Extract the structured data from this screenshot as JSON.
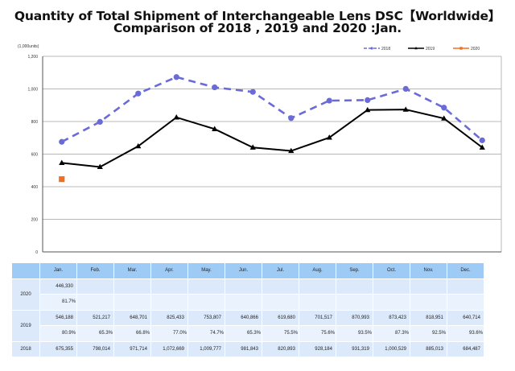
{
  "chart_data": {
    "type": "line",
    "title": "Quantity of Total Shipment of Interchangeable Lens DSC【Worldwide】",
    "subtitle": "Comparison of 2018 , 2019 and 2020 :Jan.",
    "ylabel": "(1,000units)",
    "xlabel": "",
    "ylim": [
      0,
      1200
    ],
    "yticks": [
      0,
      200,
      400,
      600,
      800,
      1000,
      1200
    ],
    "ytick_labels": [
      "0",
      "200",
      "400",
      "600",
      "800",
      "1,000",
      "1,200"
    ],
    "grid": true,
    "legend_position": "top-right",
    "categories": [
      "Jan.",
      "Feb.",
      "Mar.",
      "Apr.",
      "May.",
      "Jun.",
      "Jul.",
      "Aug.",
      "Sep.",
      "Oct.",
      "Nov.",
      "Dec."
    ],
    "series": [
      {
        "name": "2018",
        "color": "#6b6bd8",
        "style": "dashed",
        "marker": "circle",
        "values": [
          675.355,
          798.014,
          971.714,
          1072.669,
          1009.777,
          981.843,
          820.893,
          928.184,
          931.319,
          1000.529,
          885.013,
          684.487
        ]
      },
      {
        "name": "2019",
        "color": "#000000",
        "style": "solid",
        "marker": "triangle",
        "values": [
          546.188,
          521.217,
          648.701,
          825.433,
          753.807,
          640.866,
          619.68,
          701.517,
          870.993,
          873.423,
          818.951,
          640.714
        ]
      },
      {
        "name": "2020",
        "color": "#f07020",
        "style": "solid",
        "marker": "square",
        "values": [
          446.33,
          null,
          null,
          null,
          null,
          null,
          null,
          null,
          null,
          null,
          null,
          null
        ]
      }
    ]
  },
  "table": {
    "months": [
      "Jan.",
      "Feb.",
      "Mar.",
      "Apr.",
      "May.",
      "Jun.",
      "Jul.",
      "Aug.",
      "Sep.",
      "Oct.",
      "Nov.",
      "Dec."
    ],
    "rows": [
      {
        "year": "2020",
        "values": [
          "446,330",
          "",
          "",
          "",
          "",
          "",
          "",
          "",
          "",
          "",
          "",
          ""
        ],
        "percents": [
          "81.7%",
          "",
          "",
          "",
          "",
          "",
          "",
          "",
          "",
          "",
          "",
          ""
        ]
      },
      {
        "year": "2019",
        "values": [
          "546,188",
          "521,217",
          "648,701",
          "825,433",
          "753,807",
          "640,866",
          "619,680",
          "701,517",
          "870,993",
          "873,423",
          "818,951",
          "640,714"
        ],
        "percents": [
          "80.9%",
          "65.3%",
          "66.8%",
          "77.0%",
          "74.7%",
          "65.3%",
          "75.5%",
          "75.6%",
          "93.5%",
          "87.3%",
          "92.5%",
          "93.6%"
        ]
      },
      {
        "year": "2018",
        "values": [
          "675,355",
          "798,014",
          "971,714",
          "1,072,669",
          "1,009,777",
          "981,843",
          "820,893",
          "928,184",
          "931,319",
          "1,000,529",
          "885,013",
          "684,487"
        ]
      }
    ]
  }
}
